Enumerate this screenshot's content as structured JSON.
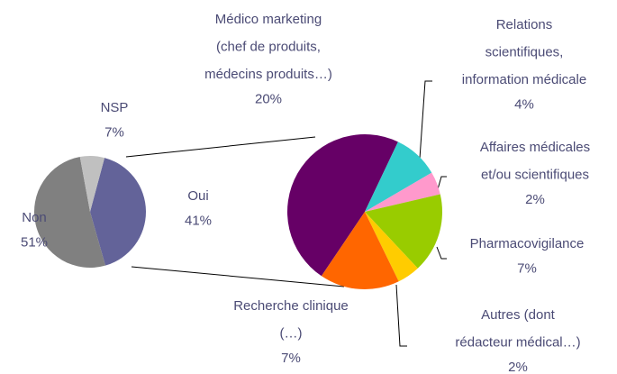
{
  "chart_data": [
    {
      "type": "pie",
      "categories": [
        [
          "Oui"
        ],
        [
          "Non"
        ],
        [
          "NSP"
        ]
      ],
      "values": [
        41,
        51,
        7
      ],
      "value_labels": [
        "41%",
        "51%",
        "7%"
      ],
      "colors": [
        "#636399",
        "#808080",
        "#c0c0c0"
      ]
    },
    {
      "type": "pie",
      "categories": [
        [
          "Médico marketing",
          "(chef de produits,",
          "médecins produits…)"
        ],
        [
          "Relations",
          "scientifiques,",
          "information médicale"
        ],
        [
          "Affaires médicales",
          "et/ou scientifiques"
        ],
        [
          "Pharmacovigilance"
        ],
        [
          "Autres (dont",
          "rédacteur médical…)"
        ],
        [
          "Recherche clinique",
          "(…)"
        ]
      ],
      "values": [
        20,
        4,
        2,
        7,
        2,
        7
      ],
      "value_labels": [
        "20%",
        "4%",
        "2%",
        "7%",
        "2%",
        "7%"
      ],
      "colors": [
        "#660066",
        "#33cccc",
        "#ff99cc",
        "#99cc00",
        "#ffcc00",
        "#ff6600"
      ]
    }
  ]
}
